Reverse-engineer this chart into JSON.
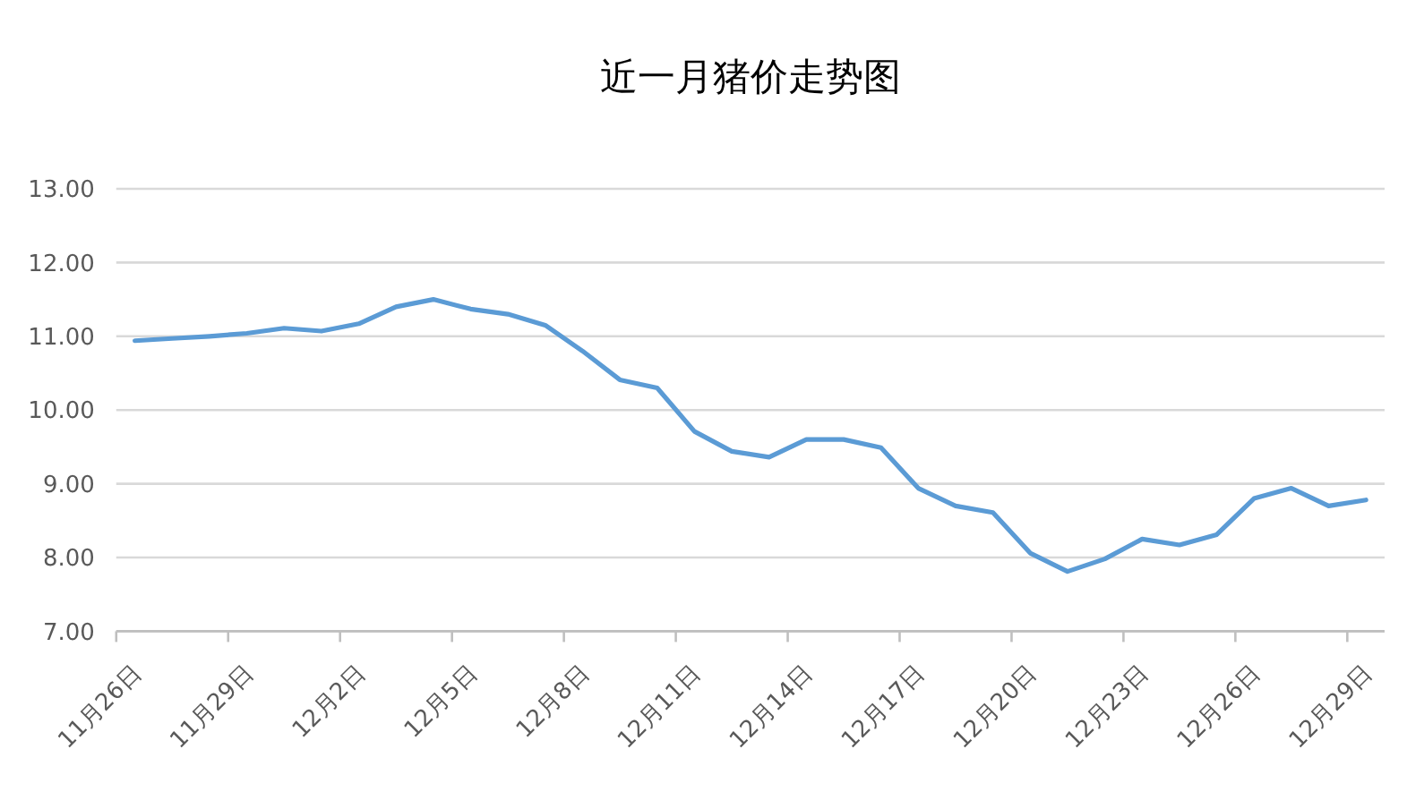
{
  "chart_data": {
    "type": "line",
    "title": "近一月猪价走势图",
    "categories": [
      "11月26日",
      null,
      null,
      "11月29日",
      null,
      null,
      "12月2日",
      null,
      null,
      "12月5日",
      null,
      null,
      "12月8日",
      null,
      null,
      "12月11日",
      null,
      null,
      "12月14日",
      null,
      null,
      "12月17日",
      null,
      null,
      "12月20日",
      null,
      null,
      "12月23日",
      null,
      null,
      "12月26日",
      null,
      null,
      "12月29日"
    ],
    "series": [
      {
        "color": "#5b9bd5",
        "values": [
          10.94,
          10.97,
          11.0,
          11.04,
          11.11,
          11.07,
          11.17,
          11.4,
          11.5,
          11.37,
          11.3,
          11.15,
          10.8,
          10.41,
          10.3,
          9.71,
          9.44,
          9.36,
          9.6,
          9.6,
          9.49,
          8.94,
          8.7,
          8.61,
          8.06,
          7.81,
          7.98,
          8.25,
          8.17,
          8.31,
          8.8,
          8.94,
          8.7,
          8.78
        ]
      }
    ],
    "ylim": [
      7,
      13
    ],
    "yticks": [
      {
        "value": 7,
        "label": "7.00"
      },
      {
        "value": 8,
        "label": "8.00"
      },
      {
        "value": 9,
        "label": "9.00"
      },
      {
        "value": 10,
        "label": "10.00"
      },
      {
        "value": 11,
        "label": "11.00"
      },
      {
        "value": 12,
        "label": "12.00"
      },
      {
        "value": 13,
        "label": "13.00"
      }
    ],
    "grid": "y"
  }
}
